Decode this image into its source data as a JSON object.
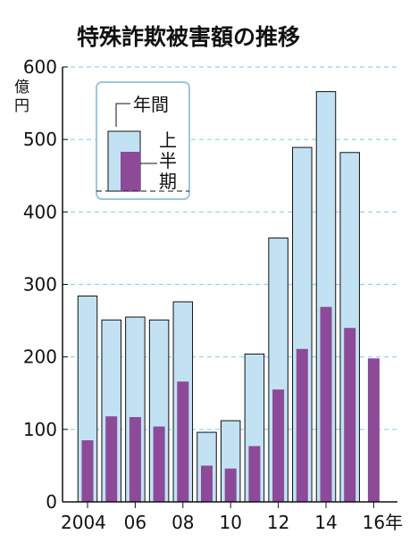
{
  "chart_data": {
    "type": "bar",
    "title": "特殊詐欺被害額の推移",
    "unit_label": [
      "億",
      "円"
    ],
    "ylim": [
      0,
      600
    ],
    "yticks": [
      0,
      100,
      200,
      300,
      400,
      500,
      600
    ],
    "grid": "horizontal dashed",
    "x_tick_labels": [
      {
        "year": 2004,
        "label": "2004"
      },
      {
        "year": 2006,
        "label": "06"
      },
      {
        "year": 2008,
        "label": "08"
      },
      {
        "year": 2010,
        "label": "10"
      },
      {
        "year": 2012,
        "label": "12"
      },
      {
        "year": 2014,
        "label": "14"
      },
      {
        "year": 2016,
        "label": "16年"
      }
    ],
    "categories": [
      2004,
      2005,
      2006,
      2007,
      2008,
      2009,
      2010,
      2011,
      2012,
      2013,
      2014,
      2015,
      2016
    ],
    "series": [
      {
        "name": "年間",
        "color": "#c2e2f3",
        "values": [
          284,
          251,
          255,
          251,
          276,
          96,
          112,
          204,
          364,
          489,
          566,
          482,
          null
        ]
      },
      {
        "name": "上半期",
        "color": "#8c4a99",
        "values": [
          85,
          118,
          117,
          104,
          166,
          50,
          46,
          77,
          155,
          211,
          269,
          240,
          198
        ]
      }
    ],
    "legend": {
      "position": "top-left",
      "annual_label": "年間",
      "half_label_chars": [
        "上",
        "半",
        "期"
      ]
    }
  }
}
